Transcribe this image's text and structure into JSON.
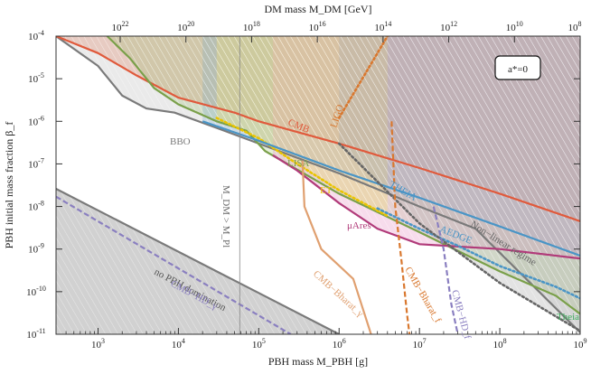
{
  "chart_data": {
    "type": "area",
    "title": "",
    "x_axis": {
      "label": "PBH mass M_PBH [g]",
      "scale": "log",
      "range": [
        300,
        1000000000.0
      ],
      "ticks": [
        {
          "value": 1000,
          "label": "10^3"
        },
        {
          "value": 10000,
          "label": "10^4"
        },
        {
          "value": 100000,
          "label": "10^5"
        },
        {
          "value": 1000000,
          "label": "10^6"
        },
        {
          "value": 10000000,
          "label": "10^7"
        },
        {
          "value": 100000000,
          "label": "10^8"
        },
        {
          "value": 1000000000,
          "label": "10^9"
        }
      ]
    },
    "top_axis": {
      "label": "DM mass M_DM [GeV]",
      "scale": "log",
      "ticks": [
        {
          "label": "10^22"
        },
        {
          "label": "10^20"
        },
        {
          "label": "10^18"
        },
        {
          "label": "10^16"
        },
        {
          "label": "10^14"
        },
        {
          "label": "10^12"
        },
        {
          "label": "10^10"
        },
        {
          "label": "10^8"
        }
      ]
    },
    "y_axis": {
      "label": "PBH initial mass fraction β_f",
      "scale": "log",
      "range": [
        1e-11,
        0.0001
      ],
      "ticks": [
        {
          "value": 1e-11,
          "label": "10^-11"
        },
        {
          "value": 1e-10,
          "label": "10^-10"
        },
        {
          "value": 1e-09,
          "label": "10^-9"
        },
        {
          "value": 1e-08,
          "label": "10^-8"
        },
        {
          "value": 1e-07,
          "label": "10^-7"
        },
        {
          "value": 1e-06,
          "label": "10^-6"
        },
        {
          "value": 1e-05,
          "label": "10^-5"
        },
        {
          "value": 0.0001,
          "label": "10^-4"
        }
      ]
    },
    "legend_box": "a*=0",
    "vertical_marker": {
      "x": 58000,
      "label": "M_DM > M_Pl"
    },
    "series": [
      {
        "name": "no PBH domination",
        "color": "#7a7a7a",
        "style": "solid",
        "points": [
          [
            300,
            2.6e-08
          ],
          [
            1000000.0,
            1e-11
          ]
        ]
      },
      {
        "name": "CMB−HD_γ",
        "color": "#8a7fc0",
        "style": "dashed",
        "points": [
          [
            300,
            1.7e-08
          ],
          [
            250000.0,
            1e-11
          ]
        ]
      },
      {
        "name": "BBO",
        "color": "#7a7a7a",
        "style": "solid",
        "points": [
          [
            300,
            0.0001
          ],
          [
            1000,
            2e-05
          ],
          [
            2000,
            4e-06
          ],
          [
            4000,
            2e-06
          ],
          [
            9000,
            1.6e-06
          ],
          [
            30000.0,
            7e-07
          ],
          [
            100000.0,
            3e-07
          ],
          [
            1000000.0,
            6e-08
          ],
          [
            10000000.0,
            1e-08
          ],
          [
            50000000.0,
            3e-09
          ],
          [
            1000000000.0,
            1.1e-11
          ]
        ]
      },
      {
        "name": "CMB",
        "color": "#e05a3c",
        "style": "solid",
        "points": [
          [
            300,
            0.0001
          ],
          [
            1000,
            4e-05
          ],
          [
            3000,
            1.2e-05
          ],
          [
            10000.0,
            3.6e-06
          ],
          [
            50000.0,
            1.6e-06
          ],
          [
            100000.0,
            1e-06
          ],
          [
            1000000.0,
            3e-07
          ],
          [
            10000000.0,
            8e-08
          ],
          [
            100000000.0,
            2e-08
          ],
          [
            1000000000.0,
            4.5e-09
          ]
        ]
      },
      {
        "name": "LISA",
        "color": "#7aa04a",
        "style": "solid",
        "points": [
          [
            1300,
            0.0001
          ],
          [
            2500,
            3e-05
          ],
          [
            5000,
            6e-06
          ],
          [
            10000.0,
            2.5e-06
          ],
          [
            30000.0,
            1e-06
          ],
          [
            70000.0,
            6e-07
          ],
          [
            120000.0,
            2e-07
          ],
          [
            1000000.0,
            2e-08
          ],
          [
            10000000.0,
            2.5e-09
          ],
          [
            100000000.0,
            3e-10
          ],
          [
            500000000.0,
            8e-11
          ],
          [
            1000000000.0,
            3e-11
          ]
        ]
      },
      {
        "name": "LIGO",
        "color": "#d9782f",
        "style": "dotted",
        "points": [
          [
            1000000.0,
            1.2e-06
          ],
          [
            4000000.0,
            0.0001
          ]
        ]
      },
      {
        "name": "ET",
        "color": "#e9c400",
        "style": "dotted",
        "points": [
          [
            30000.0,
            1.2e-06
          ],
          [
            100000.0,
            4e-07
          ],
          [
            300000.0,
            1e-07
          ],
          [
            1000000.0,
            2.4e-08
          ],
          [
            4000000.0,
            6e-09
          ]
        ]
      },
      {
        "name": "μAres",
        "color": "#b13b7a",
        "style": "solid",
        "points": [
          [
            150000.0,
            1.6e-07
          ],
          [
            300000.0,
            7e-08
          ],
          [
            1000000.0,
            1.2e-08
          ],
          [
            3000000.0,
            3e-09
          ],
          [
            10000000.0,
            1.3e-09
          ],
          [
            100000000.0,
            1e-09
          ],
          [
            1000000000.0,
            6e-10
          ]
        ]
      },
      {
        "name": "THEIA",
        "color": "#4a95c6",
        "style": "solid",
        "points": [
          [
            20000.0,
            1e-06
          ],
          [
            100000.0,
            3.5e-07
          ],
          [
            1000000.0,
            7e-08
          ],
          [
            10000000.0,
            1.6e-08
          ],
          [
            100000000.0,
            3.4e-09
          ],
          [
            1000000000.0,
            7e-10
          ]
        ]
      },
      {
        "name": "AEDGE",
        "color": "#4a95c6",
        "style": "dotted",
        "points": [
          [
            3000000.0,
            9e-09
          ],
          [
            10000000.0,
            3e-09
          ],
          [
            30000000.0,
            1.2e-09
          ],
          [
            100000000.0,
            4e-10
          ],
          [
            500000000.0,
            1.3e-10
          ],
          [
            1000000000.0,
            7e-11
          ]
        ]
      },
      {
        "name": "Non-linear regime",
        "color": "#666666",
        "style": "dotted",
        "points": [
          [
            1000000.0,
            3e-07
          ],
          [
            10000000.0,
            4e-09
          ],
          [
            100000000.0,
            1.6e-10
          ],
          [
            1000000000.0,
            1.2e-11
          ]
        ]
      },
      {
        "name": "CMB−Bharat_γ",
        "color": "#e0a070",
        "style": "solid",
        "points": [
          [
            350000.0,
            1.2e-07
          ],
          [
            370000.0,
            1e-08
          ],
          [
            600000.0,
            1e-09
          ],
          [
            1500000.0,
            2e-10
          ],
          [
            2500000.0,
            1e-11
          ]
        ]
      },
      {
        "name": "CMB−Bharat_f",
        "color": "#d9782f",
        "style": "dashed",
        "points": [
          [
            4500000.0,
            1e-06
          ],
          [
            5000000.0,
            1e-08
          ],
          [
            6000000.0,
            5e-10
          ],
          [
            7000000.0,
            3e-11
          ],
          [
            7500000.0,
            1e-11
          ]
        ]
      },
      {
        "name": "CMB−HD_f",
        "color": "#8a7fc0",
        "style": "dashed",
        "points": [
          [
            15000000.0,
            1e-08
          ],
          [
            20000000.0,
            1e-09
          ],
          [
            25000000.0,
            5e-11
          ],
          [
            30000000.0,
            1e-11
          ]
        ]
      }
    ],
    "annotations": [
      {
        "text": "BBO",
        "color": "#7a7a7a"
      },
      {
        "text": "CMB",
        "color": "#e05a3c"
      },
      {
        "text": "LIGO",
        "color": "#d9782f"
      },
      {
        "text": "LISA",
        "color": "#7aa04a"
      },
      {
        "text": "ET",
        "color": "#e9c400"
      },
      {
        "text": "THEIA",
        "color": "#4a95c6"
      },
      {
        "text": "μAres",
        "color": "#b13b7a"
      },
      {
        "text": "Non−linear regime",
        "color": "#666666"
      },
      {
        "text": "AEDGE",
        "color": "#4a95c6"
      },
      {
        "text": "CMB−Bharat_γ",
        "color": "#e0a070"
      },
      {
        "text": "CMB−Bharat_f",
        "color": "#d9782f"
      },
      {
        "text": "CMB−HD_f",
        "color": "#8a7fc0"
      },
      {
        "text": "Theia",
        "color": "#3aaa5a"
      },
      {
        "text": "no PBH domination",
        "color": "#555555"
      },
      {
        "text": "CMB−HD_γ",
        "color": "#8a7fc0"
      },
      {
        "text": "M_DM > M_Pl",
        "color": "#666666"
      }
    ]
  }
}
